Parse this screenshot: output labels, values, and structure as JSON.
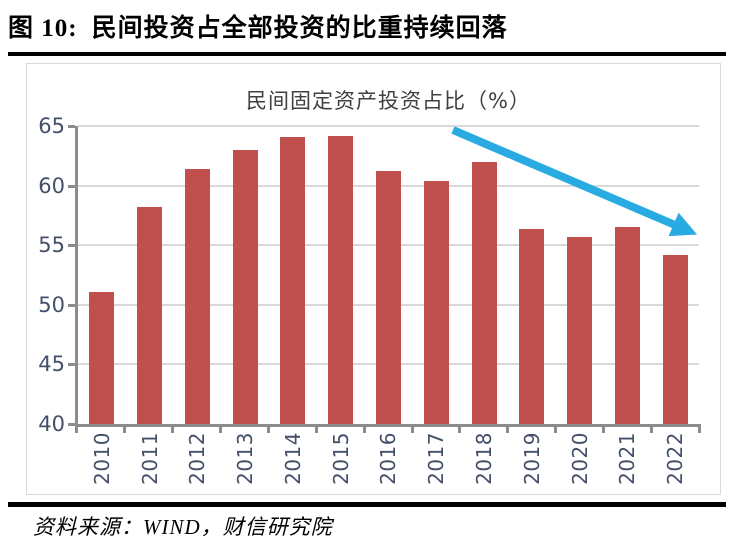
{
  "header": {
    "figure_label": "图 10:",
    "figure_title": "民间投资占全部投资的比重持续回落"
  },
  "chart_data": {
    "type": "bar",
    "title": "民间固定资产投资占比（%）",
    "categories": [
      "2010",
      "2011",
      "2012",
      "2013",
      "2014",
      "2015",
      "2016",
      "2017",
      "2018",
      "2019",
      "2020",
      "2021",
      "2022"
    ],
    "values": [
      51.1,
      58.2,
      61.4,
      63.0,
      64.1,
      64.2,
      61.2,
      60.4,
      62.0,
      56.4,
      55.7,
      56.5,
      54.2
    ],
    "xlabel": "",
    "ylabel": "",
    "ylim": [
      40,
      65
    ],
    "yticks": [
      40,
      45,
      50,
      55,
      60,
      65
    ],
    "grid": true,
    "legend": "none",
    "bar_color": "#C0504D",
    "axis_color": "#8C8C8C",
    "grid_color": "#D9D9D9",
    "tick_label_color": "#44506A",
    "annotation": {
      "type": "downward-trend-arrow",
      "color": "#29ABE2",
      "meaning": "持续回落 (continuous decline) from 2017 area to 2022"
    }
  },
  "footer": {
    "source": "资料来源：WIND，财信研究院"
  }
}
